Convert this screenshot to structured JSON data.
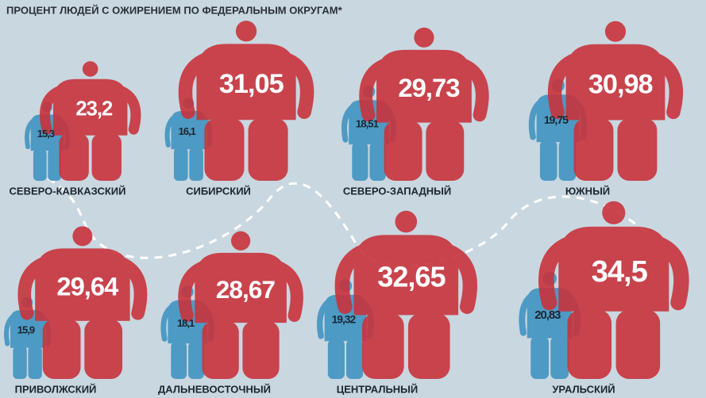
{
  "chart_data": {
    "type": "pictogram",
    "title": "ПРОЦЕНТ ЛЮДЕЙ С ОЖИРЕНИЕМ ПО ФЕДЕРАЛЬНЫМ ОКРУГАМ*",
    "categories": [
      "СЕВЕРО-КАВКАЗСКИЙ",
      "СИБИРСКИЙ",
      "СЕВЕРО-ЗАПАДНЫЙ",
      "ЮЖНЫЙ",
      "ПРИВОЛЖСКИЙ",
      "ДАЛЬНЕВОСТОЧНЫЙ",
      "ЦЕНТРАЛЬНЫЙ",
      "УРАЛЬСКИЙ"
    ],
    "series": [
      {
        "color": "#4d9ac4",
        "values": [
          15.3,
          16.1,
          18.51,
          19.75,
          15.9,
          18.1,
          19.32,
          20.83
        ],
        "value_labels": [
          "15,3",
          "16,1",
          "18,51",
          "19,75",
          "15,9",
          "18,1",
          "19,32",
          "20,83"
        ]
      },
      {
        "color": "#c8343c",
        "values": [
          23.2,
          31.05,
          29.73,
          30.98,
          29.64,
          28.67,
          32.65,
          34.5
        ],
        "value_labels": [
          "23,2",
          "31,05",
          "29,73",
          "30,98",
          "29,64",
          "28,67",
          "32,65",
          "34,5"
        ]
      }
    ]
  }
}
